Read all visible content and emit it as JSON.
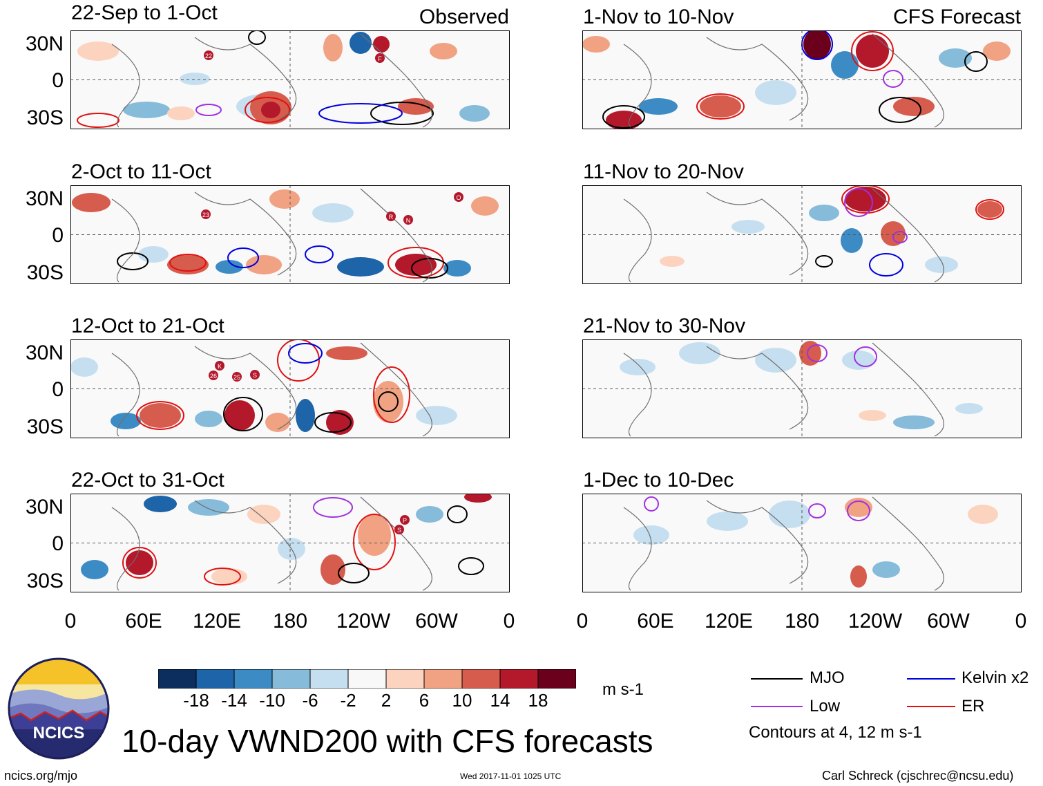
{
  "left_column": {
    "header": "Observed",
    "panels": [
      {
        "title": "22-Sep to 1-Oct"
      },
      {
        "title": "2-Oct to 11-Oct"
      },
      {
        "title": "12-Oct to 21-Oct"
      },
      {
        "title": "22-Oct to 31-Oct"
      }
    ]
  },
  "right_column": {
    "header": "CFS Forecast",
    "panels": [
      {
        "title": "1-Nov to 10-Nov"
      },
      {
        "title": "11-Nov to 20-Nov"
      },
      {
        "title": "21-Nov to 30-Nov"
      },
      {
        "title": "1-Dec to 10-Dec"
      }
    ]
  },
  "y_axis_labels": [
    "30N",
    "0",
    "30S"
  ],
  "x_axis_labels": [
    "0",
    "60E",
    "120E",
    "180",
    "120W",
    "60W",
    "0"
  ],
  "storm_markers": [
    {
      "panel": 0,
      "labels": [
        "22",
        "F"
      ]
    },
    {
      "panel": 1,
      "labels": [
        "23",
        "R",
        "N",
        "O"
      ]
    },
    {
      "panel": 2,
      "labels": [
        "K",
        "26",
        "25",
        "S"
      ]
    },
    {
      "panel": 3,
      "labels": [
        "P",
        "S"
      ]
    }
  ],
  "colorbar": {
    "ticks": [
      "-18",
      "-14",
      "-10",
      "-6",
      "-2",
      "2",
      "6",
      "10",
      "14",
      "18"
    ],
    "colors": [
      "#0b2e5e",
      "#1e64a8",
      "#3d8bc4",
      "#86bbda",
      "#c6dff0",
      "#f8f8f8",
      "#fcd3bf",
      "#f0a282",
      "#d65c4d",
      "#b3182b",
      "#6a001b"
    ],
    "units": "m s-1"
  },
  "legend": {
    "items": [
      {
        "label": "MJO",
        "color": "#000000"
      },
      {
        "label": "Kelvin x2",
        "color": "#0000e0"
      },
      {
        "label": "Low",
        "color": "#a030e0"
      },
      {
        "label": "ER",
        "color": "#e01010"
      }
    ],
    "note": "Contours at 4, 12 m s-1"
  },
  "logo": {
    "text": "NCICS"
  },
  "main_title": "10-day VWND200 with CFS forecasts",
  "footer": {
    "website": "ncics.org/mjo",
    "timestamp": "Wed 2017-11-01 1025 UTC",
    "credit": "Carl Schreck (cjschrec@ncsu.edu)"
  }
}
